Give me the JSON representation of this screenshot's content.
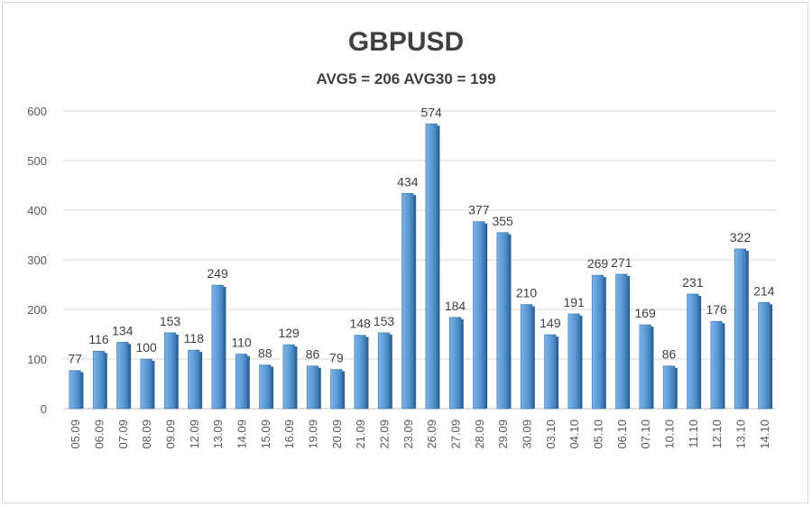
{
  "chart_data": {
    "type": "bar",
    "title": "GBPUSD",
    "subtitle": "AVG5 = 206 AVG30 = 199",
    "categories": [
      "05.09",
      "06.09",
      "07.09",
      "08.09",
      "09.09",
      "12.09",
      "13.09",
      "14.09",
      "15.09",
      "16.09",
      "19.09",
      "20.09",
      "21.09",
      "22.09",
      "23.09",
      "26.09",
      "27.09",
      "28.09",
      "29.09",
      "30.09",
      "03.10",
      "04.10",
      "05.10",
      "06.10",
      "07.10",
      "10.10",
      "11.10",
      "12.10",
      "13.10",
      "14.10"
    ],
    "values": [
      77,
      116,
      134,
      100,
      153,
      118,
      249,
      110,
      88,
      129,
      86,
      79,
      148,
      153,
      434,
      574,
      184,
      377,
      355,
      210,
      149,
      191,
      269,
      271,
      169,
      86,
      231,
      176,
      322,
      214
    ],
    "ylim": [
      0,
      600
    ],
    "yticks": [
      0,
      100,
      200,
      300,
      400,
      500,
      600
    ],
    "xlabel": "",
    "ylabel": "",
    "grid": true,
    "bar_color": "#5b9bd5",
    "data_labels": true
  }
}
